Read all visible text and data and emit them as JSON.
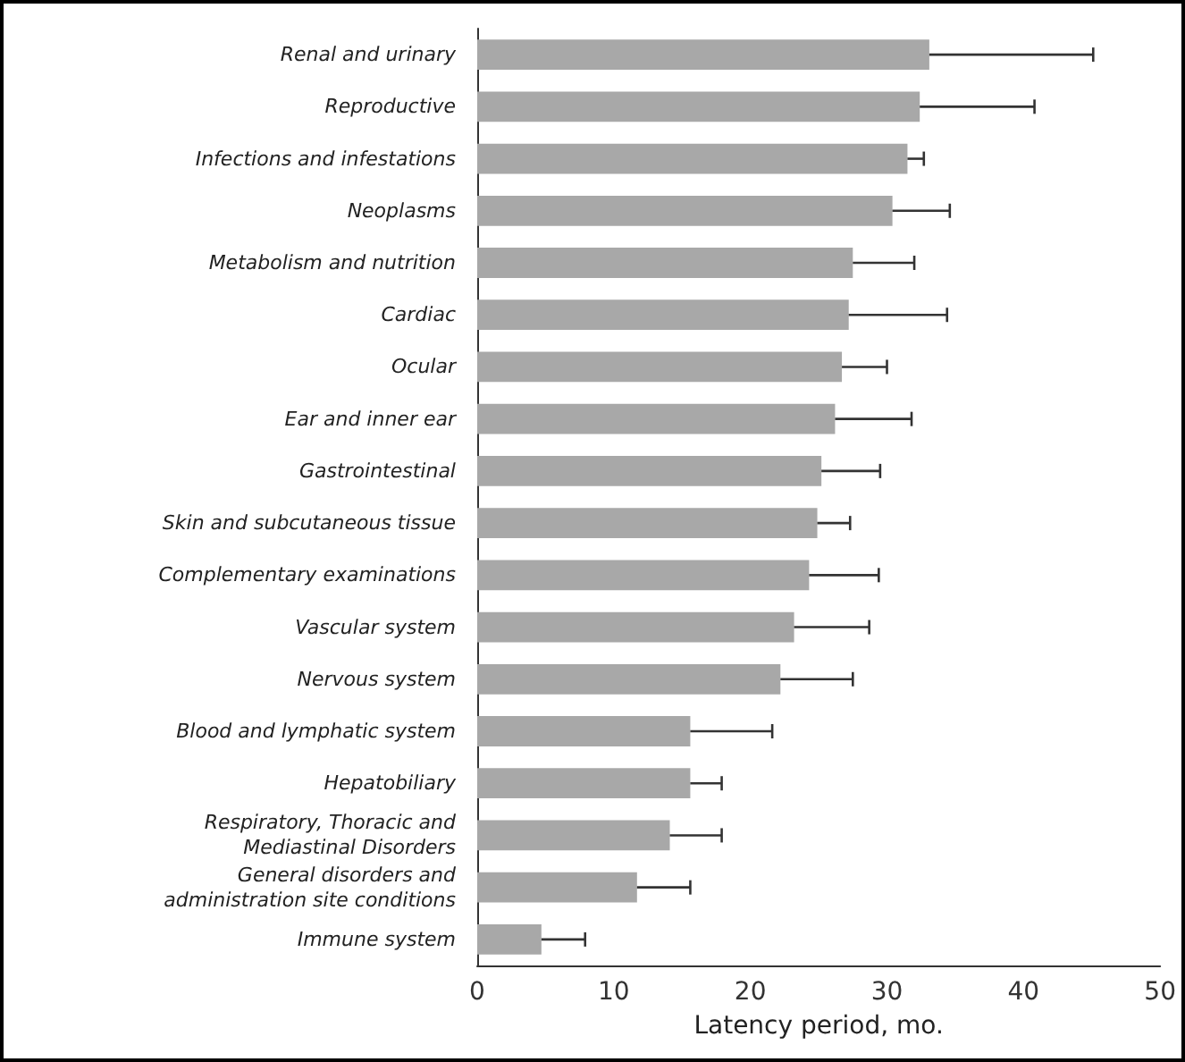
{
  "chart_data": {
    "type": "bar",
    "orientation": "horizontal",
    "xlabel": "Latency period, mo.",
    "categories": [
      "Renal and urinary",
      "Reproductive",
      "Infections and infestations",
      "Neoplasms",
      "Metabolism and nutrition",
      "Cardiac",
      "Ocular",
      "Ear and inner ear",
      "Gastrointestinal",
      "Skin and subcutaneous tissue",
      "Complementary examinations",
      "Vascular system",
      "Nervous system",
      "Blood and lymphatic system",
      "Hepatobiliary",
      "Respiratory, Thoracic and\nMediastinal Disorders",
      "General disorders and\nadministration site conditions",
      "Immune system"
    ],
    "values": [
      33.1,
      32.4,
      31.5,
      30.4,
      27.5,
      27.2,
      26.7,
      26.2,
      25.2,
      24.9,
      24.3,
      23.2,
      22.2,
      15.6,
      15.6,
      14.1,
      11.7,
      4.7
    ],
    "errors": [
      [
        33.1,
        45.1
      ],
      [
        32.4,
        40.8
      ],
      [
        31.5,
        32.7
      ],
      [
        30.4,
        34.6
      ],
      [
        27.5,
        32.0
      ],
      [
        27.2,
        34.4
      ],
      [
        26.7,
        30.0
      ],
      [
        26.2,
        31.8
      ],
      [
        25.2,
        29.5
      ],
      [
        24.9,
        27.3
      ],
      [
        24.3,
        29.4
      ],
      [
        23.2,
        28.7
      ],
      [
        22.2,
        27.5
      ],
      [
        15.6,
        21.6
      ],
      [
        15.6,
        17.9
      ],
      [
        14.1,
        17.9
      ],
      [
        11.7,
        15.6
      ],
      [
        4.7,
        7.9
      ]
    ],
    "color": "#a8a8a8",
    "xlim": [
      0,
      50
    ],
    "xticks": [
      0,
      10,
      20,
      30,
      40,
      50
    ]
  }
}
